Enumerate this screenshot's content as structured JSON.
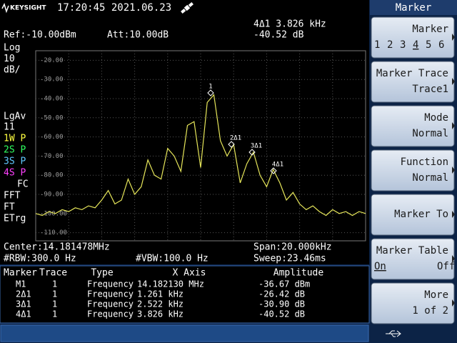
{
  "status_bar": {
    "brand": "KEYSIGHT",
    "datetime": "17:20:45  2021.06.23"
  },
  "screen": {
    "ref": "Ref:-10.00dBm",
    "att": "Att:10.00dB",
    "active_marker": "4Δ1  3.826 kHz",
    "active_value": "-40.52 dB",
    "scale": [
      "Log",
      "10",
      "dB/"
    ],
    "trace_info": [
      "LgAv",
      "11",
      "1W P",
      "2S P",
      "3S P",
      "4S P",
      "FC",
      "FFT",
      "FT",
      "ETrg"
    ],
    "trace": {
      "type": "line",
      "color": "#e6e65a",
      "values": [
        -100,
        -101,
        -99,
        -100,
        -98,
        -99,
        -97,
        -98,
        -96,
        -97,
        -93,
        -88,
        -95,
        -93,
        -82,
        -90,
        -86,
        -72,
        -80,
        -82,
        -66,
        -70,
        -78,
        -54,
        -52,
        -76,
        -42,
        -38,
        -62,
        -70,
        -64,
        -84,
        -74,
        -68,
        -80,
        -86,
        -77,
        -84,
        -93,
        -89,
        -95,
        -98,
        -96,
        -99,
        -101,
        -98,
        -100,
        -99,
        -101,
        -99,
        -100
      ],
      "ylim": [
        -15,
        -114.25
      ],
      "yticks": [
        {
          "value": -20,
          "label": "-20.00"
        },
        {
          "value": -30,
          "label": "-30.00"
        },
        {
          "value": -40,
          "label": "-40.00"
        },
        {
          "value": -50,
          "label": "-50.00"
        },
        {
          "value": -60,
          "label": "-60.00"
        },
        {
          "value": -70,
          "label": "-70.00"
        },
        {
          "value": -80,
          "label": "-80.00"
        },
        {
          "value": -90,
          "label": "-90.00"
        },
        {
          "value": -100,
          "label": "-100.00"
        },
        {
          "value": -110,
          "label": "-110.00"
        }
      ],
      "grid": true
    },
    "markers": [
      "1",
      "2Δ1",
      "3Δ1",
      "4Δ1"
    ],
    "center": "Center:14.181478MHz",
    "span": "Span:20.000kHz",
    "rbw": "#RBW:300.0 Hz",
    "vbw": "#VBW:100.0 Hz",
    "sweep": "Sweep:23.46ms"
  },
  "marker_table": {
    "header": [
      "Marker",
      "Trace",
      "Type",
      "X Axis",
      "Amplitude"
    ],
    "rows": [
      [
        "M1",
        "1",
        "Frequency",
        "14.182130 MHz",
        "-36.67 dBm"
      ],
      [
        "2Δ1",
        "1",
        "Frequency",
        "1.261 kHz",
        "-26.42 dB"
      ],
      [
        "3Δ1",
        "1",
        "Frequency",
        "2.522 kHz",
        "-30.90 dB"
      ],
      [
        "4Δ1",
        "1",
        "Frequency",
        "3.826 kHz",
        "-40.52 dB"
      ]
    ]
  },
  "softkeys": {
    "title": "Marker",
    "keys": [
      {
        "label": "Marker",
        "options": [
          "1",
          "2",
          "3",
          "4",
          "5",
          "6"
        ],
        "selected": 3
      },
      {
        "label": "Marker Trace",
        "value": "Trace1"
      },
      {
        "label": "Mode",
        "value": "Normal"
      },
      {
        "label": "Function",
        "value": "Normal"
      },
      {
        "label": "Marker To"
      },
      {
        "label": "Marker Table",
        "options": [
          "On",
          "Off"
        ],
        "selected": 0
      },
      {
        "label": "More",
        "value": "1 of 2"
      }
    ]
  }
}
